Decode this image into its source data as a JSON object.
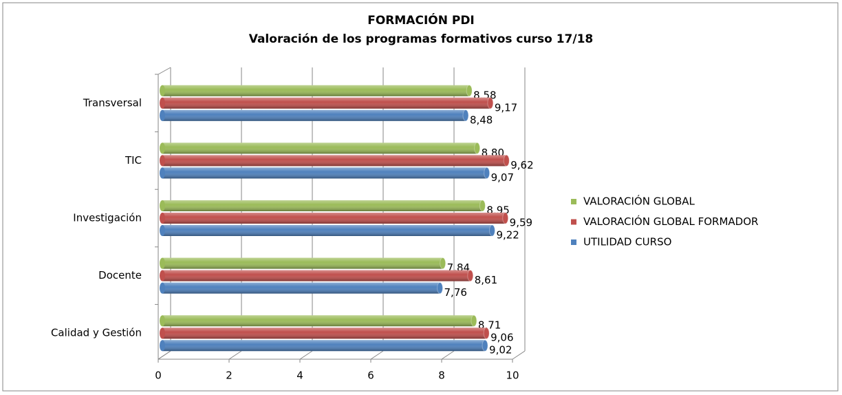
{
  "chart_data": {
    "type": "bar",
    "orientation": "horizontal",
    "title": "FORMACIÓN PDI",
    "subtitle": "Valoración de los programas formativos curso 17/18",
    "categories": [
      "Transversal",
      "TIC",
      "Investigación",
      "Docente",
      "Calidad y Gestión"
    ],
    "series": [
      {
        "name": "VALORACIÓN GLOBAL",
        "color": "#9bbb59",
        "values": [
          8.58,
          8.8,
          8.95,
          7.84,
          8.71
        ],
        "value_labels": [
          "8,58",
          "8,80",
          "8,95",
          "7,84",
          "8,71"
        ]
      },
      {
        "name": "VALORACIÓN GLOBAL FORMADOR",
        "color": "#c0504d",
        "values": [
          9.17,
          9.62,
          9.59,
          8.61,
          9.06
        ],
        "value_labels": [
          "9,17",
          "9,62",
          "9,59",
          "8,61",
          "9,06"
        ]
      },
      {
        "name": "UTILIDAD CURSO",
        "color": "#4f81bd",
        "values": [
          8.48,
          9.07,
          9.22,
          7.76,
          9.02
        ],
        "value_labels": [
          "8,48",
          "9,07",
          "9,22",
          "7,76",
          "9,02"
        ]
      }
    ],
    "xlim": [
      0,
      10
    ],
    "xticks": [
      0,
      2,
      4,
      6,
      8,
      10
    ],
    "grid": true,
    "legend": "right"
  }
}
